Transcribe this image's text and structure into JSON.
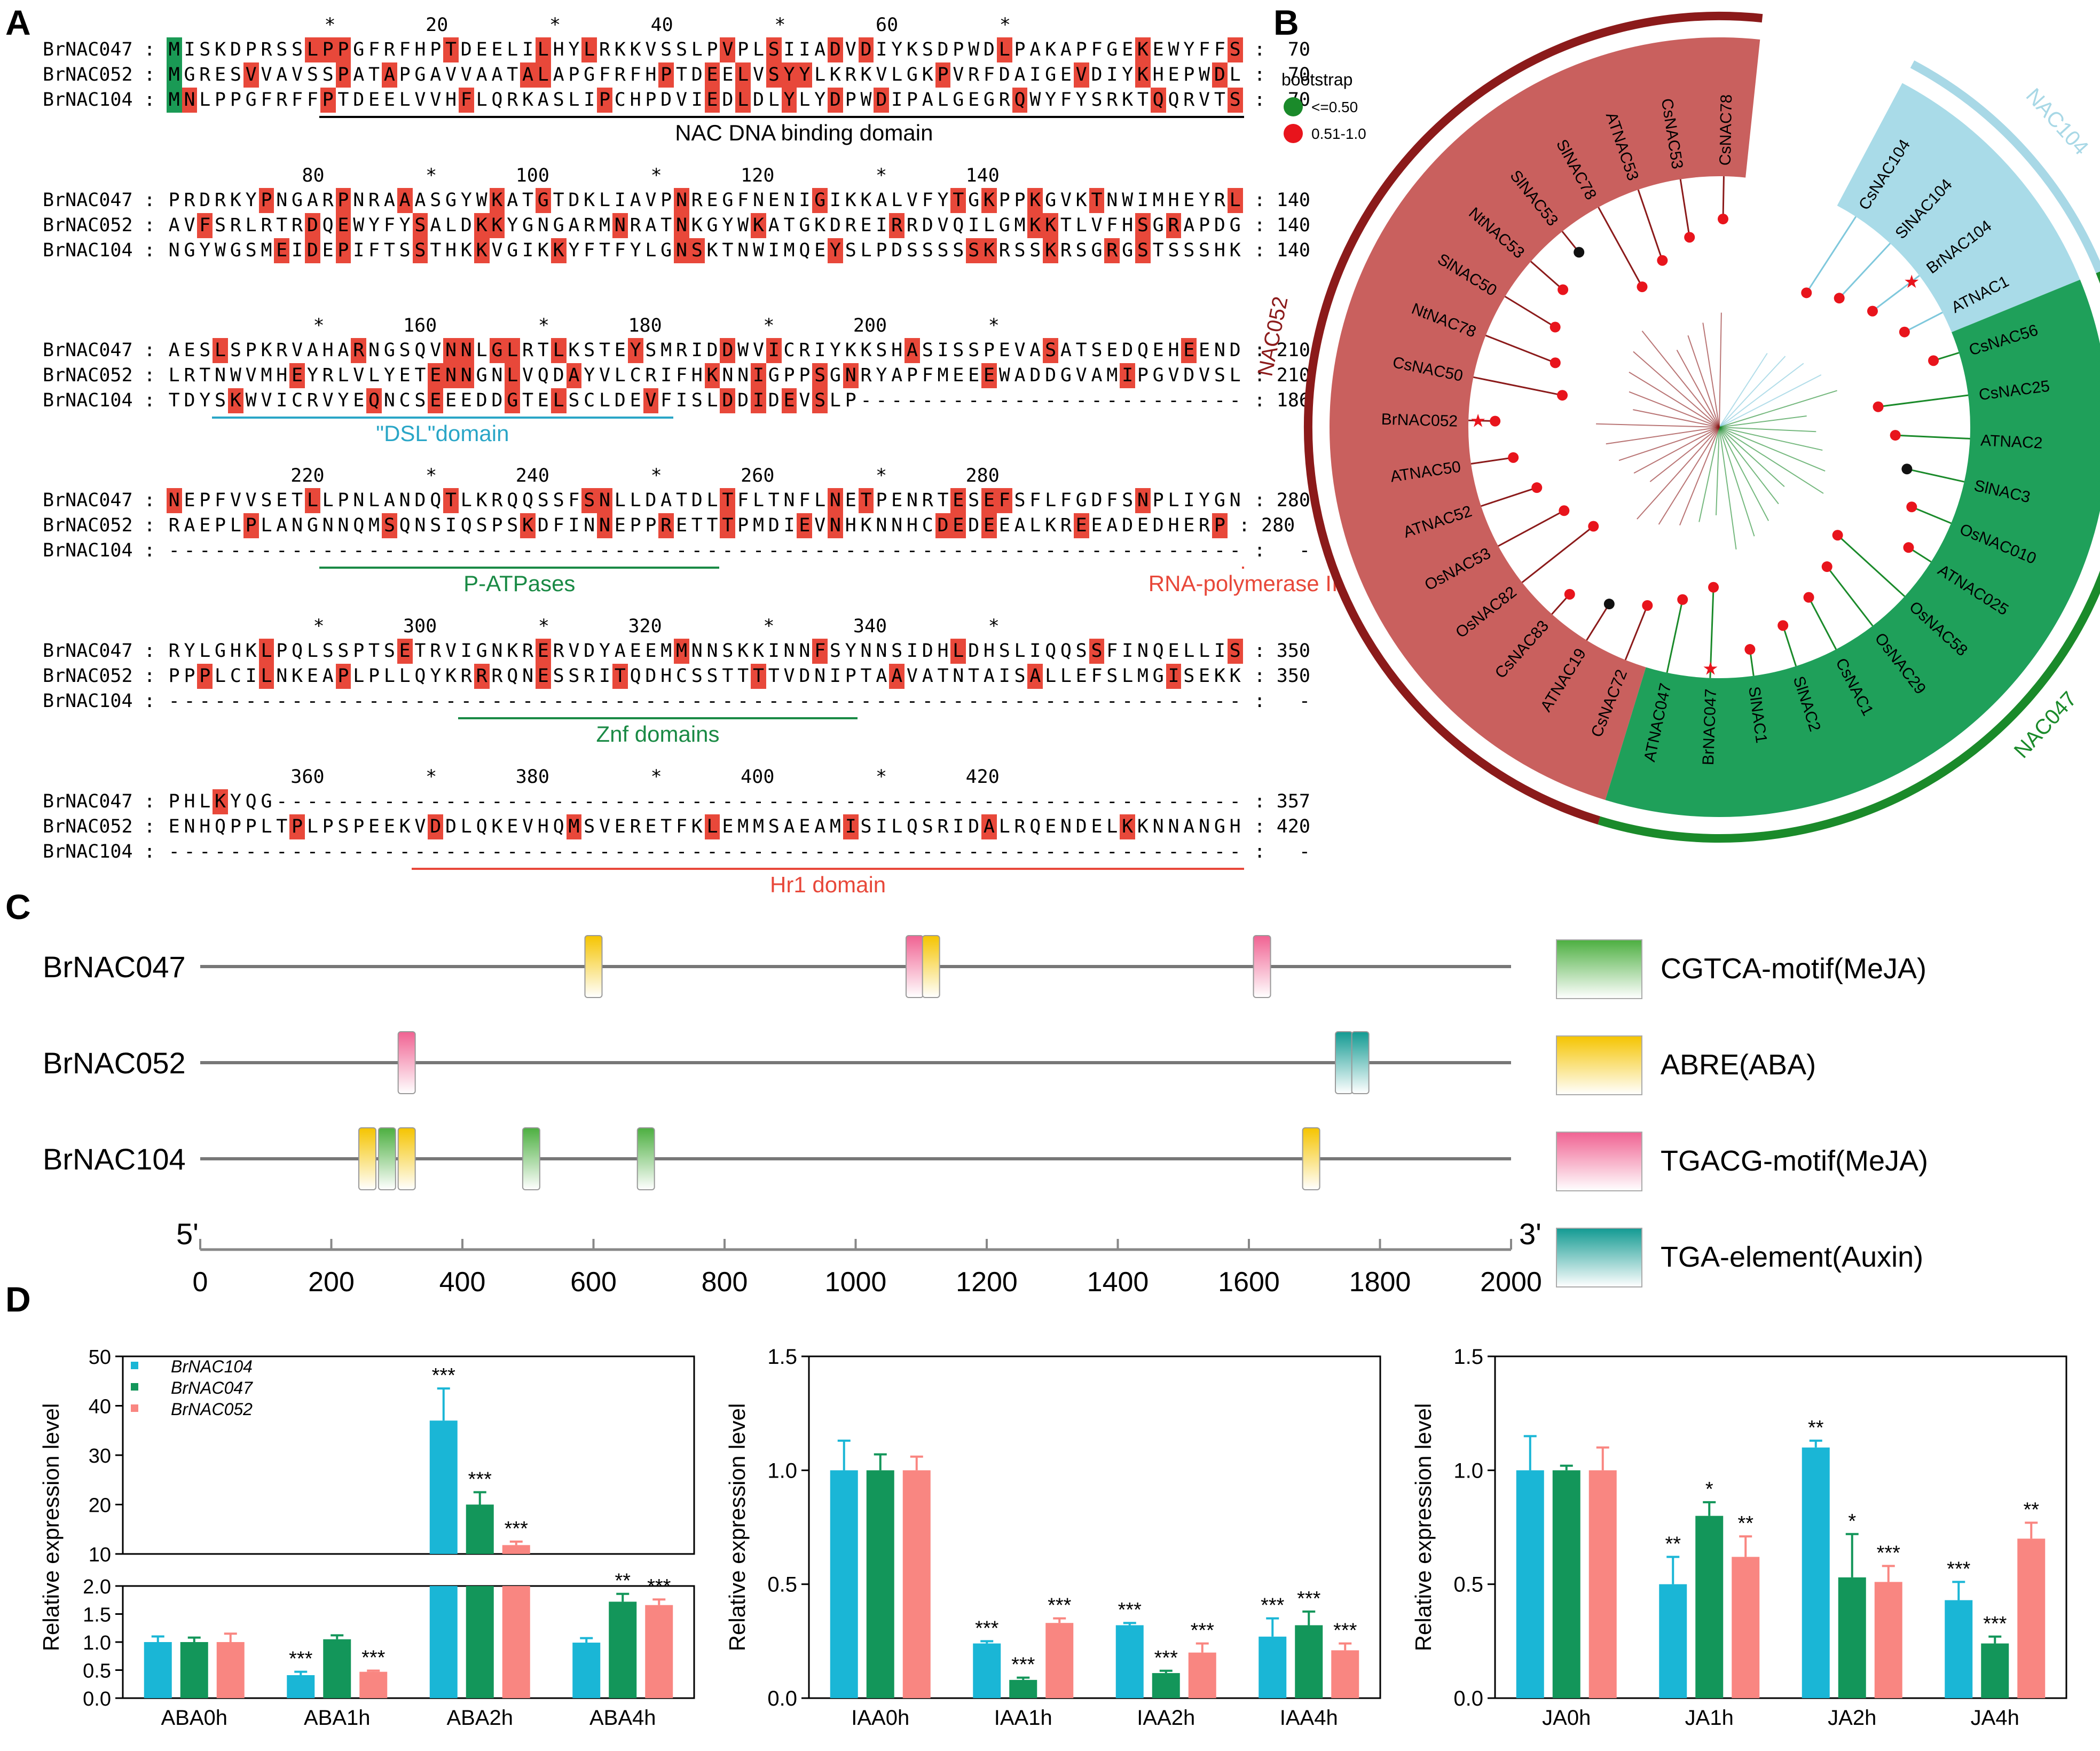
{
  "panels": {
    "a": "A",
    "b": "B",
    "c": "C",
    "d": "D"
  },
  "alignment": {
    "blocks": [
      {
        "ruler": "          *        20         *        40         *        60         *",
        "rows": [
          {
            "name": "BrNAC047 :",
            "seq": "MISKDPRSSLPPGFRFHPTDEELILHYLRKKVSSLPVPLSIIADVDIYKSDPWDLPAKAPFGEKEWYFFS",
            "end": ":  70"
          },
          {
            "name": "BrNAC052 :",
            "seq": "MGRESVVAVSSPATAPGAVVAATALAPGFRFHPTDEELVSYYLKRKVLGKPVRFDAIGEVDIYKHEPWDL",
            "end": ":  70"
          },
          {
            "name": "BrNAC104 :",
            "seq": "MNLPPGFRFFPTDEELVVHFLQRKASLIPCHPDVIEDLDLYLYDPWDIPALGEGRQWYFYSRKTQQRVTS",
            "end": ":  70"
          }
        ],
        "domains": [
          {
            "label": "NAC DNA binding domain",
            "color": "#000000"
          }
        ]
      },
      {
        "ruler": "        80         *       100         *       120         *       140",
        "rows": [
          {
            "name": "BrNAC047 :",
            "seq": "PRDRKYPNGARPNRAAASGYWKATGTDKLIAVPNREGFNENIGIKKALVFYTGKPPKGVKTNWIMHEYRL",
            "end": ": 140"
          },
          {
            "name": "BrNAC052 :",
            "seq": "AVFSRLRTRDQEWYFYSALDKKYGNGARMNRATNKGYWKATGKDREIRRDVQILGMKKTLVFHSGRAPDG",
            "end": ": 140"
          },
          {
            "name": "BrNAC104 :",
            "seq": "NGYWGSMEIDEPIFTSSTHKKVGIKKYFTFYLGNSKTNWIMQEYSLPDSSSSSKRSSKRSGRGSTSSSHK",
            "end": ": 140"
          }
        ],
        "domains": []
      },
      {
        "ruler": "         *       160         *       180         *       200         *",
        "rows": [
          {
            "name": "BrNAC047 :",
            "seq": "AESLSPKRVAHARNGSQVNNLGLRTLKSTEYSMRIDDWVICRIYKKSHASISSPEVASATSEDQEHEEND",
            "end": ": 210"
          },
          {
            "name": "BrNAC052 :",
            "seq": "LRTNWVMHEYRLVLYETENNGNLVQDAYVLCRIFHKNNIGPPSGNRYAPFMEEEWADDGVAMIPGVDVSL",
            "end": ": 210"
          },
          {
            "name": "BrNAC104 :",
            "seq": "TDYSKWVICRVYEQNCSEEEDDGTELSCLDEVFISLDDIDEVSLP-------------------------",
            "end": ": 186"
          }
        ],
        "domains": [
          {
            "label": "\"DSL\"domain",
            "color": "#2aa6c7"
          }
        ]
      },
      {
        "ruler": "       220         *       240         *       260         *       280",
        "rows": [
          {
            "name": "BrNAC047 :",
            "seq": "NEPFVVSETLLPNLANDQTLKRQQSSFSNLLDATDLTFLTNFLNETPENRTESEFSFLFGDFSNPLIYGN",
            "end": ": 280"
          },
          {
            "name": "BrNAC052 :",
            "seq": "RAEPLPLANGNNQMSQNSIQSPSKDFINNEPPRETTTPMDIEVNHKNNHCDEDEEALKREEADEDHERP",
            "end": ": 280"
          },
          {
            "name": "BrNAC104 :",
            "seq": "----------------------------------------------------------------------",
            "end": ":   -"
          }
        ],
        "domains": [
          {
            "label": "P-ATPases",
            "color": "#1a8a45"
          },
          {
            "label": "RNA-polymerase II",
            "color": "#e8483a"
          }
        ]
      },
      {
        "ruler": "         *       300         *       320         *       340         *",
        "rows": [
          {
            "name": "BrNAC047 :",
            "seq": "RYLGHKLPQLSSPTSETRVIGNKRERVDYAEEMMNNSKKINNFSYNNSIDHLDHSLIQQSSFINQELLIS",
            "end": ": 350"
          },
          {
            "name": "BrNAC052 :",
            "seq": "PPPLCILNKEAPLPLLQYKRRRQNESSRITQDHCSSTTTTVDNIPTAAVATNTAISALLEFSLMGISEKK",
            "end": ": 350"
          },
          {
            "name": "BrNAC104 :",
            "seq": "----------------------------------------------------------------------",
            "end": ":   -"
          }
        ],
        "domains": [
          {
            "label": "Znf domains",
            "color": "#1a8a45"
          }
        ]
      },
      {
        "ruler": "       360         *       380         *       400         *       420",
        "rows": [
          {
            "name": "BrNAC047 :",
            "seq": "PHLKYQG---------------------------------------------------------------",
            "end": ": 357"
          },
          {
            "name": "BrNAC052 :",
            "seq": "ENHQPPLTPLPSPEEKVDDLQKEVHQMSVERETFKLEMMSAEAMISILQSRIDALRQENDELKKNNANGH",
            "end": ": 420"
          },
          {
            "name": "BrNAC104 :",
            "seq": "----------------------------------------------------------------------",
            "end": ":   -"
          }
        ],
        "domains": [
          {
            "label": "Hr1 domain",
            "color": "#e8483a"
          }
        ]
      }
    ]
  },
  "tree": {
    "legend_title": "bootstrap",
    "legend_items": [
      {
        "label": "<=0.50",
        "color": "#1a8a2a"
      },
      {
        "label": "0.51-1.0",
        "color": "#e8141c"
      }
    ],
    "clades": [
      {
        "label": "NAC052",
        "color": "#8b1a1a"
      },
      {
        "label": "NAC104",
        "color": "#a8d8e6"
      },
      {
        "label": "NAC047",
        "color": "#1a8a2a"
      }
    ],
    "leaves": [
      "CsNAC104",
      "SlNAC104",
      "BrNAC104",
      "ATNAC1",
      "CsNAC56",
      "CsNAC25",
      "ATNAC2",
      "SlNAC3",
      "OsNAC010",
      "ATNAC025",
      "OsNAC58",
      "OsNAC29",
      "CsNAC1",
      "SlNAC2",
      "SlNAC1",
      "BrNAC047",
      "ATNAC047",
      "CsNAC72",
      "ATNAC19",
      "CsNAC83",
      "OsNAC82",
      "OsNAC53",
      "ATNAC52",
      "ATNAC50",
      "BrNAC052",
      "CsNAC50",
      "NtNAC78",
      "SlNAC50",
      "NtNAC53",
      "SlNAC53",
      "SlNAC78",
      "ATNAC53",
      "CsNAC53",
      "CsNAC78"
    ]
  },
  "promoter": {
    "genes": [
      "BrNAC047",
      "BrNAC052",
      "BrNAC104"
    ],
    "legend": [
      {
        "label": "CGTCA-motif(MeJA)",
        "color": "#4caf40"
      },
      {
        "label": "ABRE(ABA)",
        "color": "#f5c400"
      },
      {
        "label": "TGACG-motif(MeJA)",
        "color": "#f06292"
      },
      {
        "label": "TGA-element(Auxin)",
        "color": "#129a92"
      }
    ],
    "axis": {
      "left_label": "5'",
      "right_label": "3'",
      "ticks": [
        "0",
        "200",
        "400",
        "600",
        "800",
        "1000",
        "1200",
        "1400",
        "1600",
        "1800",
        "2000"
      ]
    },
    "elements": [
      {
        "gene": 0,
        "pos": 600,
        "type": 1
      },
      {
        "gene": 0,
        "pos": 1090,
        "type": 2
      },
      {
        "gene": 0,
        "pos": 1115,
        "type": 1
      },
      {
        "gene": 0,
        "pos": 1620,
        "type": 2
      },
      {
        "gene": 1,
        "pos": 315,
        "type": 2
      },
      {
        "gene": 1,
        "pos": 1745,
        "type": 3
      },
      {
        "gene": 1,
        "pos": 1770,
        "type": 3
      },
      {
        "gene": 2,
        "pos": 255,
        "type": 1
      },
      {
        "gene": 2,
        "pos": 285,
        "type": 0
      },
      {
        "gene": 2,
        "pos": 315,
        "type": 1
      },
      {
        "gene": 2,
        "pos": 505,
        "type": 0
      },
      {
        "gene": 2,
        "pos": 680,
        "type": 0
      },
      {
        "gene": 2,
        "pos": 1695,
        "type": 1
      }
    ]
  },
  "chart_data": [
    {
      "type": "bar",
      "ylabel": "Relative expression level",
      "categories": [
        "ABA0h",
        "ABA1h",
        "ABA2h",
        "ABA4h"
      ],
      "series": [
        {
          "name": "BrNAC104",
          "color": "#1ab6d6",
          "values": [
            1.0,
            0.41,
            37.0,
            0.99
          ],
          "errors": [
            0.1,
            0.06,
            6.5,
            0.08
          ],
          "sig": [
            "",
            "***",
            "***",
            ""
          ]
        },
        {
          "name": "BrNAC047",
          "color": "#13965a",
          "values": [
            1.0,
            1.05,
            20.0,
            1.72
          ],
          "errors": [
            0.08,
            0.07,
            2.5,
            0.14
          ],
          "sig": [
            "",
            "",
            "***",
            "**"
          ]
        },
        {
          "name": "BrNAC052",
          "color": "#f98681",
          "values": [
            1.0,
            0.47,
            8.3,
            1.66
          ],
          "errors": [
            0.15,
            0.02,
            0.7,
            0.1
          ],
          "sig": [
            "",
            "***",
            "***",
            "***"
          ]
        }
      ],
      "ytick_labels_lower": [
        "0.0",
        "0.5",
        "1.0",
        "1.5",
        "2.0"
      ],
      "ytick_labels_upper": [
        "10",
        "20",
        "30",
        "40",
        "50"
      ]
    },
    {
      "type": "bar",
      "ylabel": "Relative expression level",
      "categories": [
        "IAA0h",
        "IAA1h",
        "IAA2h",
        "IAA4h"
      ],
      "ylim": [
        0,
        1.5
      ],
      "yticks": [
        "0.0",
        "0.5",
        "1.0",
        "1.5"
      ],
      "series": [
        {
          "name": "BrNAC104",
          "color": "#1ab6d6",
          "values": [
            1.0,
            0.24,
            0.32,
            0.27
          ],
          "errors": [
            0.13,
            0.01,
            0.01,
            0.08
          ],
          "sig": [
            "",
            "***",
            "***",
            "***"
          ]
        },
        {
          "name": "BrNAC047",
          "color": "#13965a",
          "values": [
            1.0,
            0.08,
            0.11,
            0.32
          ],
          "errors": [
            0.07,
            0.01,
            0.01,
            0.06
          ],
          "sig": [
            "",
            "***",
            "***",
            "***"
          ]
        },
        {
          "name": "BrNAC052",
          "color": "#f98681",
          "values": [
            1.0,
            0.33,
            0.2,
            0.21
          ],
          "errors": [
            0.06,
            0.02,
            0.04,
            0.03
          ],
          "sig": [
            "",
            "***",
            "***",
            "***"
          ]
        }
      ]
    },
    {
      "type": "bar",
      "ylabel": "Relative expression level",
      "categories": [
        "JA0h",
        "JA1h",
        "JA2h",
        "JA4h"
      ],
      "ylim": [
        0,
        1.5
      ],
      "yticks": [
        "0.0",
        "0.5",
        "1.0",
        "1.5"
      ],
      "series": [
        {
          "name": "BrNAC104",
          "color": "#1ab6d6",
          "values": [
            1.0,
            0.5,
            1.1,
            0.43
          ],
          "errors": [
            0.15,
            0.12,
            0.03,
            0.08
          ],
          "sig": [
            "",
            "**",
            "**",
            "***"
          ]
        },
        {
          "name": "BrNAC047",
          "color": "#13965a",
          "values": [
            1.0,
            0.8,
            0.53,
            0.24
          ],
          "errors": [
            0.02,
            0.06,
            0.19,
            0.03
          ],
          "sig": [
            "",
            "*",
            "*",
            "***"
          ]
        },
        {
          "name": "BrNAC052",
          "color": "#f98681",
          "values": [
            1.0,
            0.62,
            0.51,
            0.7
          ],
          "errors": [
            0.1,
            0.09,
            0.07,
            0.07
          ],
          "sig": [
            "",
            "**",
            "***",
            "**"
          ]
        }
      ]
    }
  ]
}
